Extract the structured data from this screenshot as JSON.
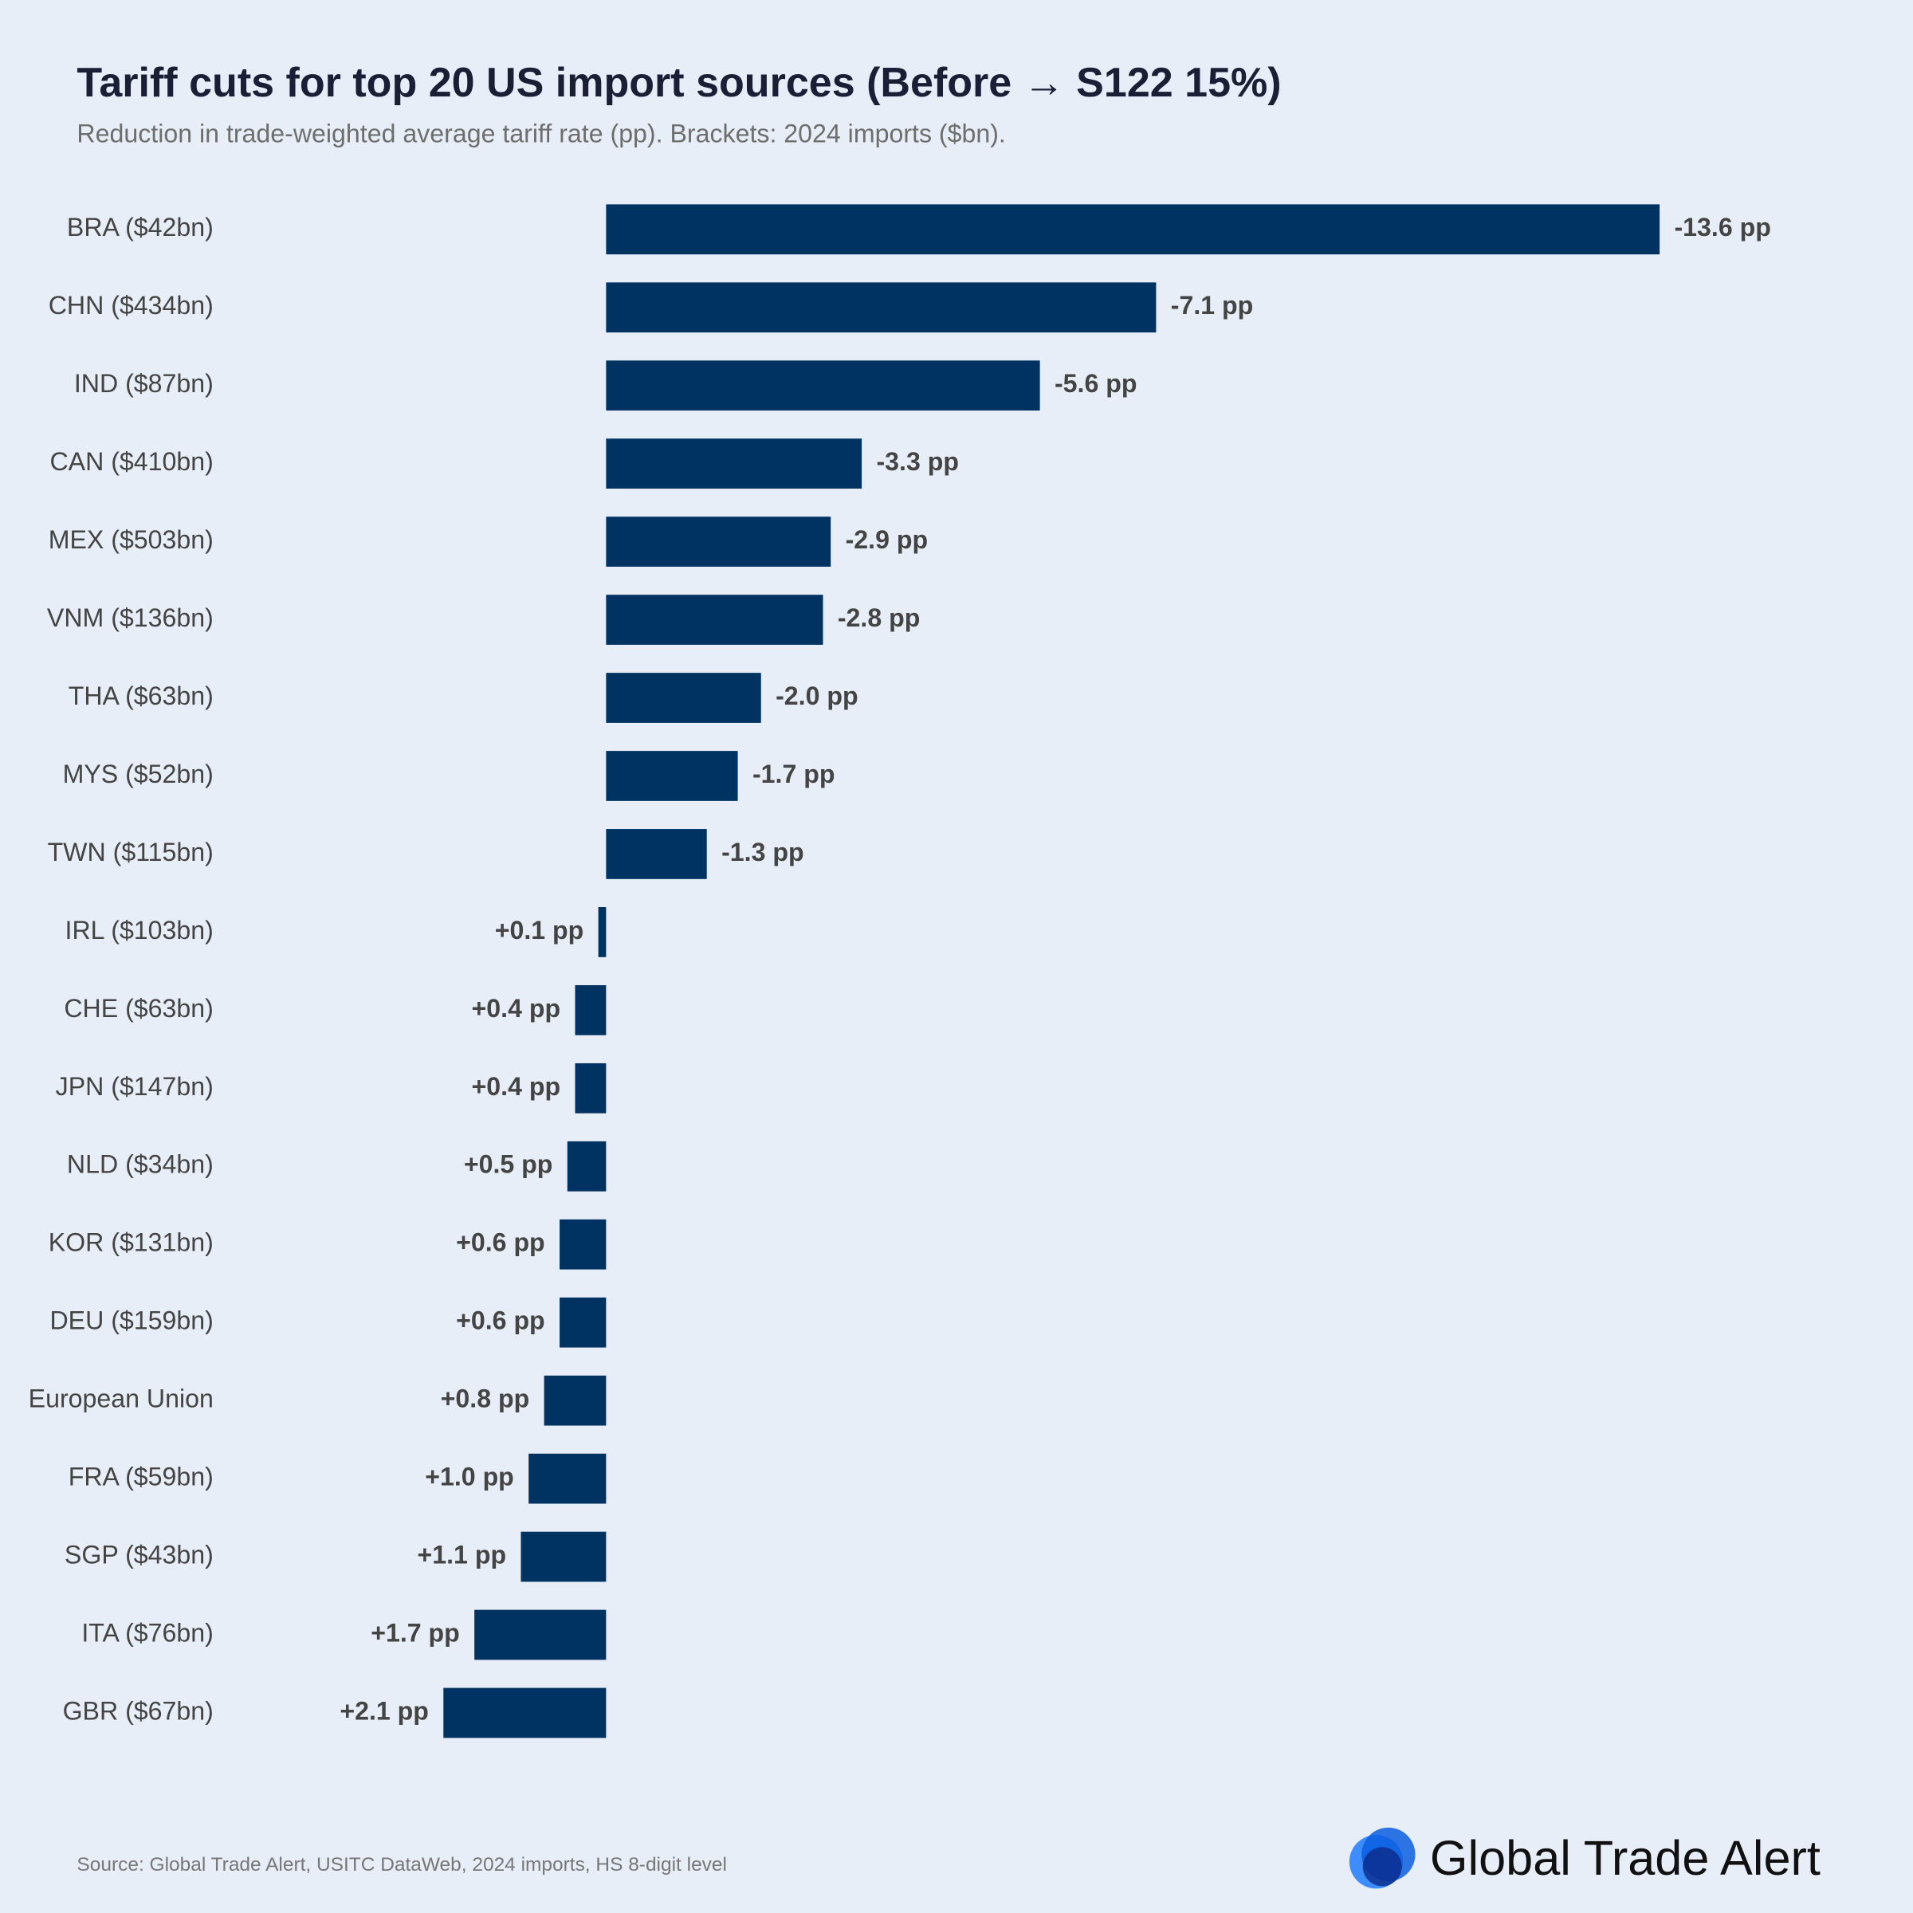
{
  "chart_data": {
    "type": "hbar",
    "title": "Tariff cuts for top 20 US import sources (Before → S122 15%)",
    "subtitle": "Reduction in trade-weighted average tariff rate (pp). Brackets: 2024 imports ($bn).",
    "categories": [
      "BRA ($42bn)",
      "CHN ($434bn)",
      "IND ($87bn)",
      "CAN ($410bn)",
      "MEX ($503bn)",
      "VNM ($136bn)",
      "THA ($63bn)",
      "MYS ($52bn)",
      "TWN ($115bn)",
      "IRL ($103bn)",
      "CHE ($63bn)",
      "JPN ($147bn)",
      "NLD ($34bn)",
      "KOR ($131bn)",
      "DEU ($159bn)",
      "European Union",
      "FRA ($59bn)",
      "SGP ($43bn)",
      "ITA ($76bn)",
      "GBR ($67bn)"
    ],
    "values": [
      -13.6,
      -7.1,
      -5.6,
      -3.3,
      -2.9,
      -2.8,
      -2.0,
      -1.7,
      -1.3,
      0.1,
      0.4,
      0.4,
      0.5,
      0.6,
      0.6,
      0.8,
      1.0,
      1.1,
      1.7,
      2.1
    ],
    "value_labels": [
      "-13.6 pp",
      "-7.1 pp",
      "-5.6 pp",
      "-3.3 pp",
      "-2.9 pp",
      "-2.8 pp",
      "-2.0 pp",
      "-1.7 pp",
      "-1.3 pp",
      "+0.1 pp",
      "+0.4 pp",
      "+0.4 pp",
      "+0.5 pp",
      "+0.6 pp",
      "+0.6 pp",
      "+0.8 pp",
      "+1.0 pp",
      "+1.1 pp",
      "+1.7 pp",
      "+2.1 pp"
    ],
    "color": "#003262",
    "xlim": [
      4.8,
      -15.8
    ],
    "source": "Source: Global Trade Alert, USITC DataWeb, 2024 imports, HS 8-digit level",
    "logo": "Global Trade Alert"
  }
}
